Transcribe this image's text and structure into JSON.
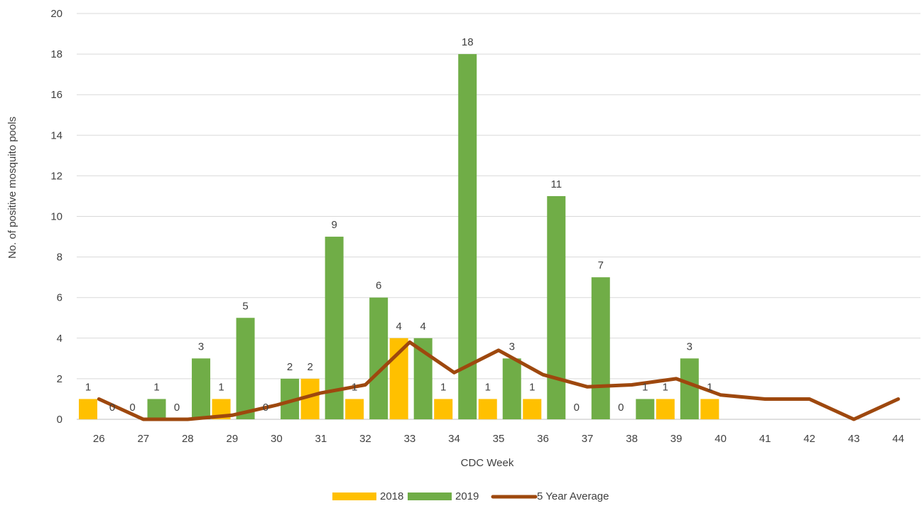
{
  "chart_data": {
    "type": "bar",
    "title": "",
    "xlabel": "CDC Week",
    "ylabel": "No. of positive mosquito pools",
    "ylim": [
      0,
      20
    ],
    "yticks": [
      0,
      2,
      4,
      6,
      8,
      10,
      12,
      14,
      16,
      18,
      20
    ],
    "grid": true,
    "legend_position": "bottom",
    "categories": [
      "26",
      "27",
      "28",
      "29",
      "30",
      "31",
      "32",
      "33",
      "34",
      "35",
      "36",
      "37",
      "38",
      "39",
      "40",
      "41",
      "42",
      "43",
      "44"
    ],
    "series": [
      {
        "name": "2018",
        "kind": "bar",
        "color": "#FFC000",
        "values": [
          1,
          0,
          0,
          1,
          0,
          2,
          1,
          4,
          1,
          1,
          1,
          0,
          0,
          1,
          1,
          null,
          null,
          null,
          null
        ]
      },
      {
        "name": "2019",
        "kind": "bar",
        "color": "#70AD47",
        "values": [
          0,
          1,
          3,
          5,
          2,
          9,
          6,
          4,
          18,
          3,
          11,
          7,
          1,
          3,
          null,
          null,
          null,
          null,
          null
        ]
      },
      {
        "name": "5 Year Average",
        "kind": "line",
        "color": "#9E480E",
        "values": [
          1.0,
          0.0,
          0.0,
          0.2,
          0.7,
          1.3,
          1.7,
          3.8,
          2.3,
          3.4,
          2.2,
          1.6,
          1.7,
          2.0,
          1.2,
          1.0,
          1.0,
          0.0,
          1.0
        ]
      }
    ],
    "data_labels": {
      "2018": [
        "1",
        "0",
        "0",
        "1",
        "0",
        "2",
        "1",
        "4",
        "1",
        "1",
        "1",
        "0",
        "0",
        "1",
        "1",
        "",
        "",
        "",
        ""
      ],
      "2019": [
        "0",
        "1",
        "3",
        "5",
        "2",
        "9",
        "6",
        "4",
        "18",
        "3",
        "11",
        "7",
        "1",
        "3",
        "",
        "",
        "",
        "",
        ""
      ]
    }
  }
}
